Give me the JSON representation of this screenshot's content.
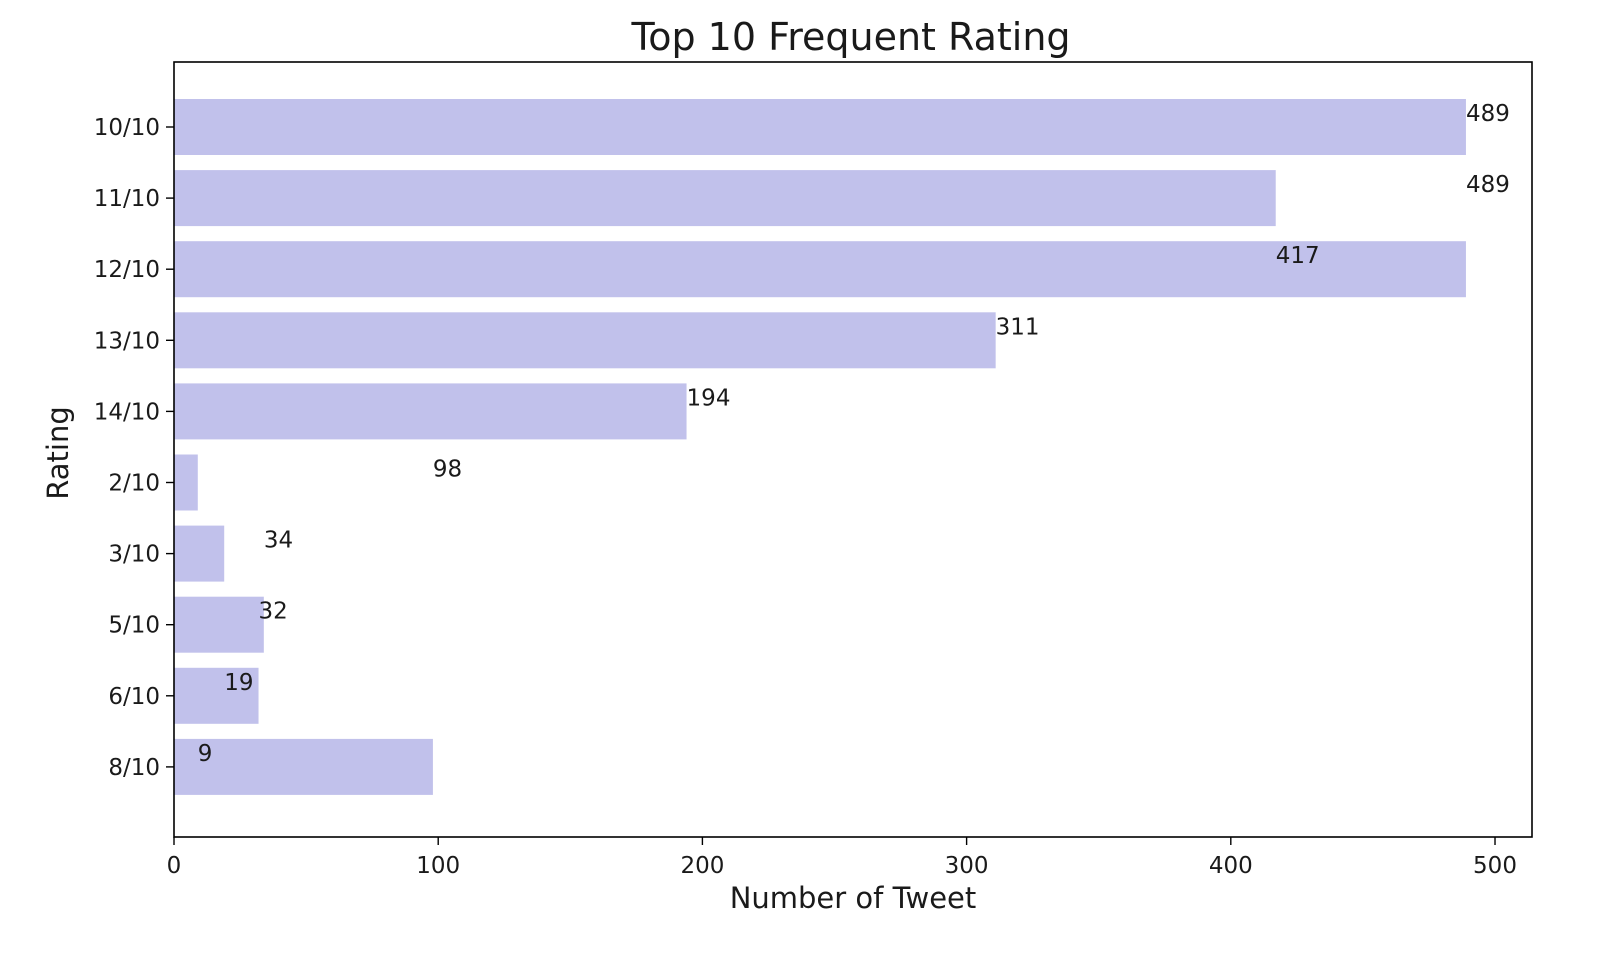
{
  "chart_data": {
    "type": "bar",
    "orientation": "horizontal",
    "title": "Top 10 Frequent Rating",
    "xlabel": "Number of Tweet",
    "ylabel": "Rating",
    "categories": [
      "10/10",
      "11/10",
      "12/10",
      "13/10",
      "14/10",
      "2/10",
      "3/10",
      "5/10",
      "6/10",
      "8/10"
    ],
    "values": [
      489,
      417,
      489,
      311,
      194,
      9,
      19,
      34,
      32,
      98
    ],
    "data_labels": [
      "489",
      "489",
      "417",
      "311",
      "194",
      "98",
      "34",
      "32",
      "19",
      "9"
    ],
    "data_label_positions": [
      489,
      489,
      417,
      311,
      194,
      98,
      34,
      32,
      19,
      9
    ],
    "xlim": [
      0,
      514
    ],
    "xticks": [
      0,
      100,
      200,
      300,
      400,
      500
    ],
    "grid": false,
    "bar_color": "#c1c1eb"
  }
}
